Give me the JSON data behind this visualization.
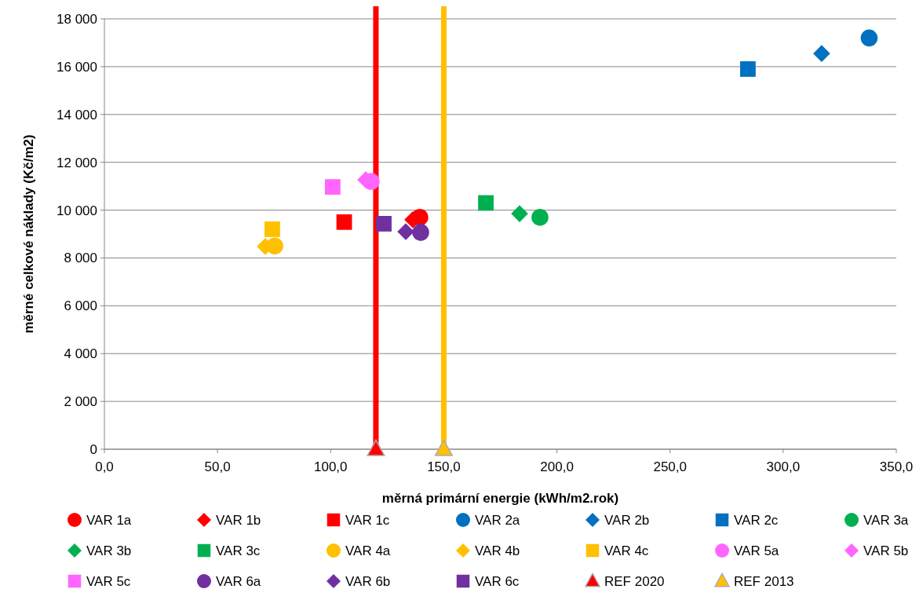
{
  "chart_data": {
    "type": "scatter",
    "xlabel": "měrná primární energie (kWh/m2.rok)",
    "ylabel": "měrné celkové náklady  (Kč/m2)",
    "xlim": [
      0,
      350
    ],
    "ylim": [
      0,
      18000
    ],
    "xticks": [
      {
        "value": 0,
        "label": "0,0"
      },
      {
        "value": 50,
        "label": "50,0"
      },
      {
        "value": 100,
        "label": "100,0"
      },
      {
        "value": 150,
        "label": "150,0"
      },
      {
        "value": 200,
        "label": "200,0"
      },
      {
        "value": 250,
        "label": "250,0"
      },
      {
        "value": 300,
        "label": "300,0"
      },
      {
        "value": 350,
        "label": "350,0"
      }
    ],
    "yticks": [
      0,
      {
        "value": 2000,
        "label": "2 000"
      },
      {
        "value": 4000,
        "label": "4 000"
      },
      {
        "value": 6000,
        "label": "6 000"
      },
      {
        "value": 8000,
        "label": "8 000"
      },
      {
        "value": 10000,
        "label": "10 000"
      },
      {
        "value": 12000,
        "label": "12 000"
      },
      {
        "value": 14000,
        "label": "14 000"
      },
      {
        "value": 16000,
        "label": "16 000"
      },
      {
        "value": 18000,
        "label": "18 000"
      }
    ],
    "grid": "y",
    "legend": "bottom",
    "ref_lines": [
      {
        "axis": "x",
        "value": 120,
        "color": "#ff0000"
      },
      {
        "axis": "x",
        "value": 150,
        "color": "#ffc000"
      }
    ],
    "series": [
      {
        "name": "VAR 1a",
        "color": "#ff0000",
        "marker": "circle",
        "x": [
          139.4
        ],
        "values": [
          9700
        ]
      },
      {
        "name": "VAR 1b",
        "color": "#ff0000",
        "marker": "diamond",
        "x": [
          136.3
        ],
        "values": [
          9600
        ]
      },
      {
        "name": "VAR 1c",
        "color": "#ff0000",
        "marker": "square",
        "x": [
          106
        ],
        "values": [
          9500
        ]
      },
      {
        "name": "VAR 2a",
        "color": "#0070c0",
        "marker": "circle",
        "x": [
          338
        ],
        "values": [
          17200
        ]
      },
      {
        "name": "VAR 2b",
        "color": "#0070c0",
        "marker": "diamond",
        "x": [
          317
        ],
        "values": [
          16550
        ]
      },
      {
        "name": "VAR 2c",
        "color": "#0070c0",
        "marker": "square",
        "x": [
          284.4
        ],
        "values": [
          15900
        ]
      },
      {
        "name": "VAR 3a",
        "color": "#00b050",
        "marker": "circle",
        "x": [
          192.5
        ],
        "values": [
          9700
        ]
      },
      {
        "name": "VAR 3b",
        "color": "#00b050",
        "marker": "diamond",
        "x": [
          183.5
        ],
        "values": [
          9850
        ]
      },
      {
        "name": "VAR 3c",
        "color": "#00b050",
        "marker": "square",
        "x": [
          168.6
        ],
        "values": [
          10300
        ]
      },
      {
        "name": "VAR 4a",
        "color": "#ffc000",
        "marker": "circle",
        "x": [
          75.3
        ],
        "values": [
          8500
        ]
      },
      {
        "name": "VAR 4b",
        "color": "#ffc000",
        "marker": "diamond",
        "x": [
          71.1
        ],
        "values": [
          8480
        ]
      },
      {
        "name": "VAR 4c",
        "color": "#ffc000",
        "marker": "square",
        "x": [
          74.2
        ],
        "values": [
          9200
        ]
      },
      {
        "name": "VAR 5a",
        "color": "#ff66ff",
        "marker": "circle",
        "x": [
          117.9
        ],
        "values": [
          11200
        ]
      },
      {
        "name": "VAR 5b",
        "color": "#ff66ff",
        "marker": "diamond",
        "x": [
          115.5
        ],
        "values": [
          11270
        ]
      },
      {
        "name": "VAR 5c",
        "color": "#ff66ff",
        "marker": "square",
        "x": [
          100.9
        ],
        "values": [
          10970
        ]
      },
      {
        "name": "VAR 6a",
        "color": "#7030a0",
        "marker": "circle",
        "x": [
          139.8
        ],
        "values": [
          9070
        ]
      },
      {
        "name": "VAR 6b",
        "color": "#7030a0",
        "marker": "diamond",
        "x": [
          133.2
        ],
        "values": [
          9100
        ]
      },
      {
        "name": "VAR 6c",
        "color": "#7030a0",
        "marker": "square",
        "x": [
          123.5
        ],
        "values": [
          9430
        ]
      },
      {
        "name": "REF 2020",
        "color": "#ff0000",
        "marker": "triangle",
        "x": [
          120
        ],
        "values": [
          0
        ]
      },
      {
        "name": "REF 2013",
        "color": "#ffc000",
        "marker": "triangle",
        "x": [
          150
        ],
        "values": [
          0
        ]
      }
    ]
  }
}
